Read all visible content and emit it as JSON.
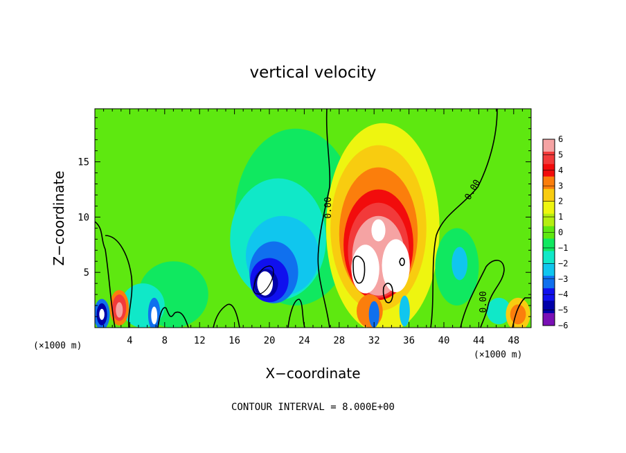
{
  "chart_data": {
    "type": "heatmap",
    "title": "vertical velocity",
    "xlabel": "X−coordinate",
    "ylabel": "Z−coordinate",
    "x_unit_left": "(×1000 m)",
    "x_unit_right": "(×1000 m)",
    "xlim": [
      0,
      50
    ],
    "ylim": [
      0,
      19.8
    ],
    "x_ticks": [
      4,
      8,
      12,
      16,
      20,
      24,
      28,
      32,
      36,
      40,
      44,
      48
    ],
    "x_tick_labels": [
      "4",
      "8",
      "12",
      "16",
      "20",
      "24",
      "28",
      "32",
      "36",
      "40",
      "44",
      "48"
    ],
    "y_ticks": [
      5,
      10,
      15
    ],
    "y_tick_labels": [
      "5",
      "10",
      "15"
    ],
    "colorbar": {
      "levels": [
        6,
        5,
        4,
        3,
        2,
        1,
        0,
        -1,
        -2,
        -3,
        -4,
        -5,
        -6
      ],
      "labels": [
        "6",
        "5",
        "4",
        "3",
        "2",
        "1",
        "0",
        "−1",
        "−2",
        "−3",
        "−4",
        "−5",
        "−6"
      ],
      "colors": [
        "#f5a3a3",
        "#f23a3a",
        "#f20c0c",
        "#fb7e0c",
        "#f8cc10",
        "#eef510",
        "#b5ee10",
        "#5ee810",
        "#10e860",
        "#10e8c8",
        "#10c6ee",
        "#1070ee",
        "#1010ee",
        "#0000a8",
        "#7a10b5"
      ]
    },
    "contour_labels": [
      "0.00",
      "0.00",
      "0.00"
    ],
    "contour_interval_text": "CONTOUR INTERVAL =  8.000E+00",
    "features": [
      {
        "x": 19.5,
        "z": 4.0,
        "value": -6.5
      },
      {
        "x": 21.5,
        "z": 6.5,
        "value": -3.0
      },
      {
        "x": 31.0,
        "z": 5.5,
        "value": 7.0
      },
      {
        "x": 34.5,
        "z": 5.5,
        "value": 6.5
      },
      {
        "x": 32.5,
        "z": 9.0,
        "value": 6.0
      },
      {
        "x": 32.0,
        "z": 12.0,
        "value": 3.0
      },
      {
        "x": 0.8,
        "z": 1.2,
        "value": -6.0
      },
      {
        "x": 2.8,
        "z": 1.8,
        "value": 5.0
      },
      {
        "x": 6.8,
        "z": 1.2,
        "value": -6.0
      },
      {
        "x": 48.5,
        "z": 1.2,
        "value": 3.0
      }
    ]
  }
}
